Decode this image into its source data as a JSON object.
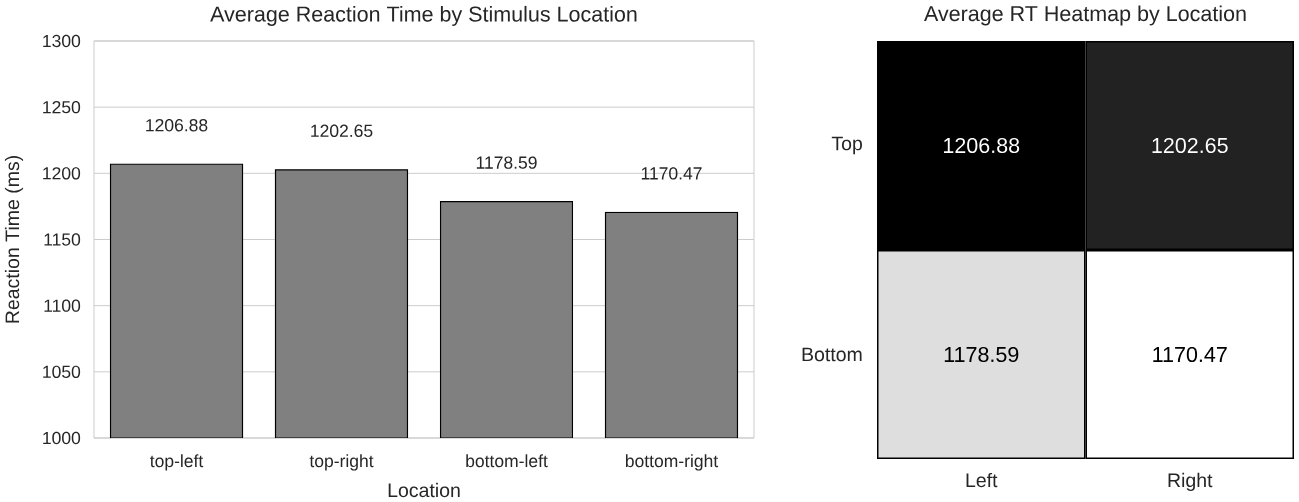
{
  "chart_data": [
    {
      "type": "bar",
      "title": "Average Reaction Time by Stimulus Location",
      "xlabel": "Location",
      "ylabel": "Reaction Time (ms)",
      "categories": [
        "top-left",
        "top-right",
        "bottom-left",
        "bottom-right"
      ],
      "values": [
        1206.88,
        1202.65,
        1178.59,
        1170.47
      ],
      "color": "#808080",
      "ylim": [
        1000,
        1300
      ],
      "yticks": [
        1000,
        1050,
        1100,
        1150,
        1200,
        1250,
        1300
      ],
      "grid": "y",
      "data_labels": true
    },
    {
      "type": "heatmap",
      "title": "Average RT Heatmap by Location",
      "categories": [
        "Left",
        "Right"
      ],
      "y_categories": [
        "Top",
        "Bottom"
      ],
      "cells": [
        [
          1206.88,
          1202.65
        ],
        [
          1178.59,
          1170.47
        ]
      ],
      "data_labels": true
    }
  ]
}
